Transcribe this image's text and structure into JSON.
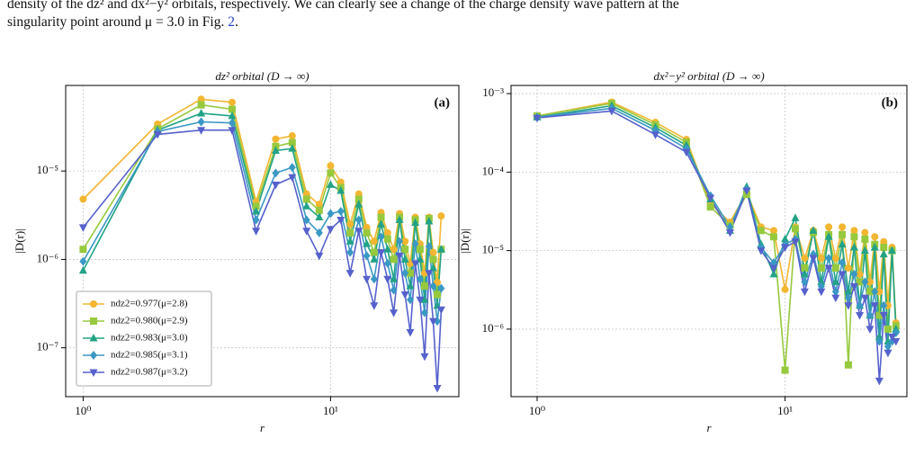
{
  "text": {
    "line1": "density of the dz² and dx²−y² orbitals, respectively. We can clearly see a change of the charge density wave pattern at the",
    "line2": [
      "singularity point around μ = 3.0 in Fig. ",
      "2",
      "."
    ]
  },
  "chart_data": [
    {
      "type": "line",
      "title": "dz² orbital (D → ∞)",
      "panel": "(a)",
      "xlabel": "r",
      "ylabel": "|D(r)|",
      "xscale": "log",
      "yscale": "log",
      "grid": true,
      "legend": "lower left",
      "xlim": [
        0.85,
        33
      ],
      "ylim": [
        2.8e-08,
        9.3e-05
      ],
      "xticks": [
        {
          "value": 1,
          "label": "10⁰"
        },
        {
          "value": 10,
          "label": "10¹"
        }
      ],
      "yticks": [
        {
          "value": 1e-07,
          "label": "10⁻⁷"
        },
        {
          "value": 1e-06,
          "label": "10⁻⁶"
        },
        {
          "value": 1e-05,
          "label": "10⁻⁵"
        }
      ],
      "x": [
        1,
        2,
        3,
        4,
        5,
        6,
        7,
        8,
        9,
        10,
        11,
        12,
        13,
        14,
        15,
        16,
        17,
        18,
        19,
        20,
        21,
        22,
        23,
        24,
        25,
        26,
        27,
        28
      ],
      "series": [
        {
          "name": "ndz2=0.977(μ=2.8)",
          "color": "#f2b631",
          "marker": "o",
          "values": [
            4.8e-06,
            3.4e-05,
            6.5e-05,
            6e-05,
            4.5e-06,
            2.3e-05,
            2.5e-05,
            5.5e-06,
            4.2e-06,
            1.15e-05,
            7.5e-06,
            2.5e-06,
            5.5e-06,
            2.3e-06,
            1.6e-06,
            3.4e-06,
            2e-06,
            1.3e-06,
            3.3e-06,
            1.6e-06,
            9e-07,
            3e-06,
            1.5e-06,
            7e-07,
            3e-06,
            1.2e-06,
            5.5e-07,
            3.1e-06
          ]
        },
        {
          "name": "ndz2=0.980(μ=2.9)",
          "color": "#97c93d",
          "marker": "s",
          "values": [
            1.3e-06,
            3e-05,
            5.6e-05,
            5e-05,
            4e-06,
            1.9e-05,
            2.1e-05,
            4.8e-06,
            3.6e-06,
            9.5e-06,
            6.5e-06,
            2e-06,
            4.8e-06,
            2e-06,
            1.2e-06,
            3e-06,
            1.7e-06,
            1e-06,
            3e-06,
            1.3e-06,
            7e-07,
            2.8e-06,
            1.3e-06,
            5e-07,
            2.9e-06,
            1e-06,
            4e-07,
            1.3e-06
          ]
        },
        {
          "name": "ndz2=0.983(μ=3.0)",
          "color": "#22a386",
          "marker": "^",
          "values": [
            7.5e-07,
            2.9e-05,
            4.5e-05,
            4.2e-05,
            3.5e-06,
            1.7e-05,
            1.8e-05,
            4e-06,
            3e-06,
            7e-06,
            6e-06,
            1.6e-06,
            4.2e-06,
            1.5e-06,
            1e-06,
            2.5e-06,
            1.3e-06,
            6e-07,
            2.8e-06,
            1e-06,
            5e-07,
            2.6e-06,
            1e-06,
            3.5e-07,
            2.7e-06,
            8e-07,
            3e-07,
            1.3e-06
          ]
        },
        {
          "name": "ndz2=0.985(μ=3.1)",
          "color": "#3a98c4",
          "marker": "D",
          "values": [
            9.5e-07,
            2.8e-05,
            3.6e-05,
            3.5e-05,
            2.8e-06,
            9.5e-06,
            1.1e-05,
            2.8e-06,
            2e-06,
            3.3e-06,
            3.5e-06,
            1.2e-06,
            2.8e-06,
            1.1e-06,
            6e-07,
            1.8e-06,
            9e-07,
            4.5e-07,
            1.6e-06,
            7e-07,
            3.5e-07,
            1.5e-06,
            6e-07,
            2.5e-07,
            1.4e-06,
            5e-07,
            2e-07,
            4.7e-07
          ]
        },
        {
          "name": "ndz2=0.987(μ=3.2)",
          "color": "#5661cc",
          "marker": "v",
          "values": [
            2.3e-06,
            2.6e-05,
            2.9e-05,
            2.9e-05,
            2.1e-06,
            7e-06,
            8.5e-06,
            2.1e-06,
            1.1e-06,
            2.2e-06,
            2.8e-06,
            7e-07,
            2.1e-06,
            6e-07,
            3e-07,
            1.2e-06,
            6e-07,
            2.5e-07,
            1.1e-06,
            4e-07,
            1.5e-07,
            9e-07,
            3.5e-07,
            8e-08,
            7e-07,
            2e-07,
            3.5e-08,
            2.7e-07
          ]
        }
      ]
    },
    {
      "type": "line",
      "title": "dx²−y² orbital (D → ∞)",
      "panel": "(b)",
      "xlabel": "r",
      "ylabel": "|D(r)|",
      "xscale": "log",
      "yscale": "log",
      "grid": true,
      "xlim": [
        0.785,
        31
      ],
      "ylim": [
        1.38e-07,
        0.00127
      ],
      "xticks": [
        {
          "value": 1,
          "label": "10⁰"
        },
        {
          "value": 10,
          "label": "10¹"
        }
      ],
      "yticks": [
        {
          "value": 1e-06,
          "label": "10⁻⁶"
        },
        {
          "value": 1e-05,
          "label": "10⁻⁵"
        },
        {
          "value": 0.0001,
          "label": "10⁻⁴"
        },
        {
          "value": 0.001,
          "label": "10⁻³"
        }
      ],
      "x": [
        1,
        2,
        3,
        4,
        5,
        6,
        7,
        8,
        9,
        10,
        11,
        12,
        13,
        14,
        15,
        16,
        17,
        18,
        19,
        20,
        21,
        22,
        23,
        24,
        25,
        26,
        27,
        28
      ],
      "series": [
        {
          "color": "#f2b631",
          "marker": "o",
          "values": [
            0.00052,
            0.00078,
            0.00043,
            0.00026,
            4e-05,
            2.3e-05,
            5.5e-05,
            2e-05,
            1.8e-05,
            3.2e-06,
            2e-05,
            8e-06,
            1.8e-05,
            8e-06,
            2e-05,
            8e-06,
            2e-05,
            6e-06,
            1.8e-05,
            5e-06,
            1.7e-05,
            4e-06,
            1.5e-05,
            3e-06,
            1.3e-05,
            2e-06,
            1.1e-05,
            1.2e-06
          ]
        },
        {
          "color": "#97c93d",
          "marker": "s",
          "values": [
            0.00052,
            0.00075,
            0.0004,
            0.00024,
            3.6e-05,
            2.1e-05,
            5.2e-05,
            1.8e-05,
            1.5e-05,
            3e-07,
            1.9e-05,
            6e-06,
            1.7e-05,
            6e-06,
            1.6e-05,
            6e-06,
            1.6e-05,
            3.5e-07,
            1.5e-05,
            4e-06,
            1.4e-05,
            3e-06,
            1.2e-05,
            1.5e-06,
            1.1e-05,
            1e-06,
            1e-05,
            1.1e-06
          ]
        },
        {
          "color": "#22a386",
          "marker": "^",
          "values": [
            0.0005,
            0.0007,
            0.00037,
            0.00022,
            4.5e-05,
            1.8e-05,
            6.5e-05,
            1.2e-05,
            5e-06,
            1.4e-05,
            2.6e-05,
            5e-06,
            1.8e-05,
            4e-06,
            1.5e-05,
            4e-06,
            1.2e-05,
            3e-06,
            1.1e-05,
            2e-06,
            1e-05,
            1.5e-06,
            1.1e-05,
            8e-07,
            9e-06,
            7e-07,
            1e-05,
            1e-06
          ]
        },
        {
          "color": "#3a98c4",
          "marker": "D",
          "values": [
            0.0005,
            0.00065,
            0.00034,
            0.0002,
            5e-05,
            2e-05,
            6e-05,
            1.1e-05,
            7e-06,
            1.2e-05,
            1.4e-05,
            4e-06,
            9e-06,
            3.5e-06,
            8e-06,
            3e-06,
            7e-06,
            2.5e-06,
            5e-06,
            2e-06,
            4e-06,
            1.5e-06,
            3e-06,
            7e-07,
            2e-06,
            6e-07,
            7e-07,
            9e-07
          ]
        },
        {
          "color": "#5661cc",
          "marker": "v",
          "values": [
            0.00049,
            0.0006,
            0.0003,
            0.00018,
            4.7e-05,
            1.7e-05,
            5.8e-05,
            1e-05,
            6e-06,
            1.1e-05,
            1.3e-05,
            3e-06,
            8e-06,
            3e-06,
            6e-06,
            2.5e-06,
            5e-06,
            2e-06,
            3.5e-06,
            1.5e-06,
            2.5e-06,
            1e-06,
            2e-06,
            2.2e-07,
            1.5e-06,
            5e-07,
            8e-07,
            7e-07
          ]
        }
      ]
    }
  ]
}
